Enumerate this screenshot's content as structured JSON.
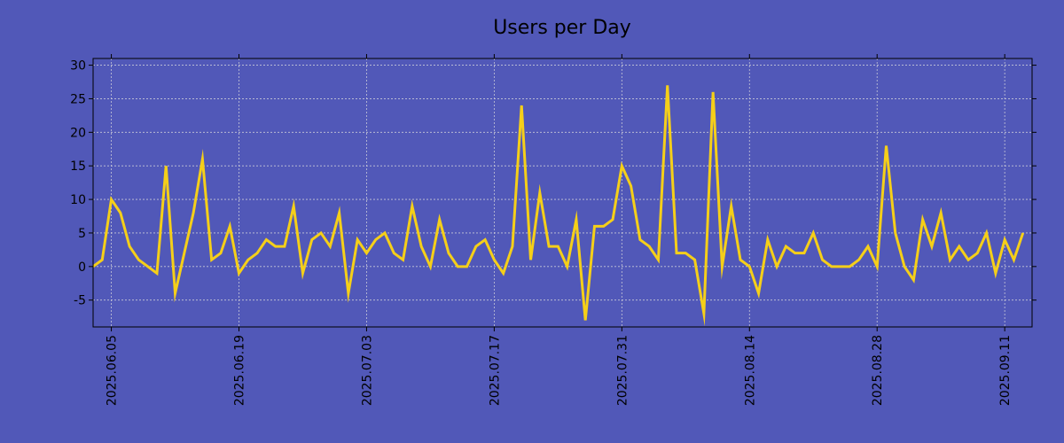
{
  "colors": {
    "background": "#5158b8",
    "plot_background": "#5158b8",
    "line": "#f5cf19",
    "axis": "#000000",
    "grid": "#c8c8d8",
    "text": "#000000"
  },
  "chart_data": {
    "type": "line",
    "title": "Users per Day",
    "xlabel": "",
    "ylabel": "",
    "x_start": "2025.06.03",
    "x_end": "2025.09.14",
    "x_ticks": [
      "2025.06.05",
      "2025.06.19",
      "2025.07.03",
      "2025.07.17",
      "2025.07.31",
      "2025.08.14",
      "2025.08.28",
      "2025.09.11"
    ],
    "y_ticks": [
      30,
      25,
      20,
      15,
      10,
      5,
      0,
      -5
    ],
    "ylim": [
      -9,
      31
    ],
    "grid": true,
    "legend": "none",
    "series": [
      {
        "name": "",
        "values": [
          0,
          1,
          10,
          8,
          3,
          1,
          0,
          -1,
          15,
          -4,
          2,
          8,
          16,
          1,
          2,
          6,
          -1,
          1,
          2,
          4,
          3,
          3,
          9,
          -1,
          4,
          5,
          3,
          8,
          -4,
          4,
          2,
          4,
          5,
          2,
          1,
          9,
          3,
          0,
          7,
          2,
          0,
          0,
          3,
          4,
          1,
          -1,
          3,
          24,
          1,
          11,
          3,
          3,
          0,
          7,
          -8,
          6,
          6,
          7,
          15,
          12,
          4,
          3,
          1,
          27,
          2,
          2,
          1,
          -7,
          26,
          0,
          9,
          1,
          0,
          -4,
          4,
          0,
          3,
          2,
          2,
          5,
          1,
          0,
          0,
          0,
          1,
          3,
          0,
          18,
          5,
          0,
          -2,
          7,
          3,
          8,
          1,
          3,
          1,
          2,
          5,
          -1,
          4,
          1,
          5
        ]
      }
    ]
  }
}
